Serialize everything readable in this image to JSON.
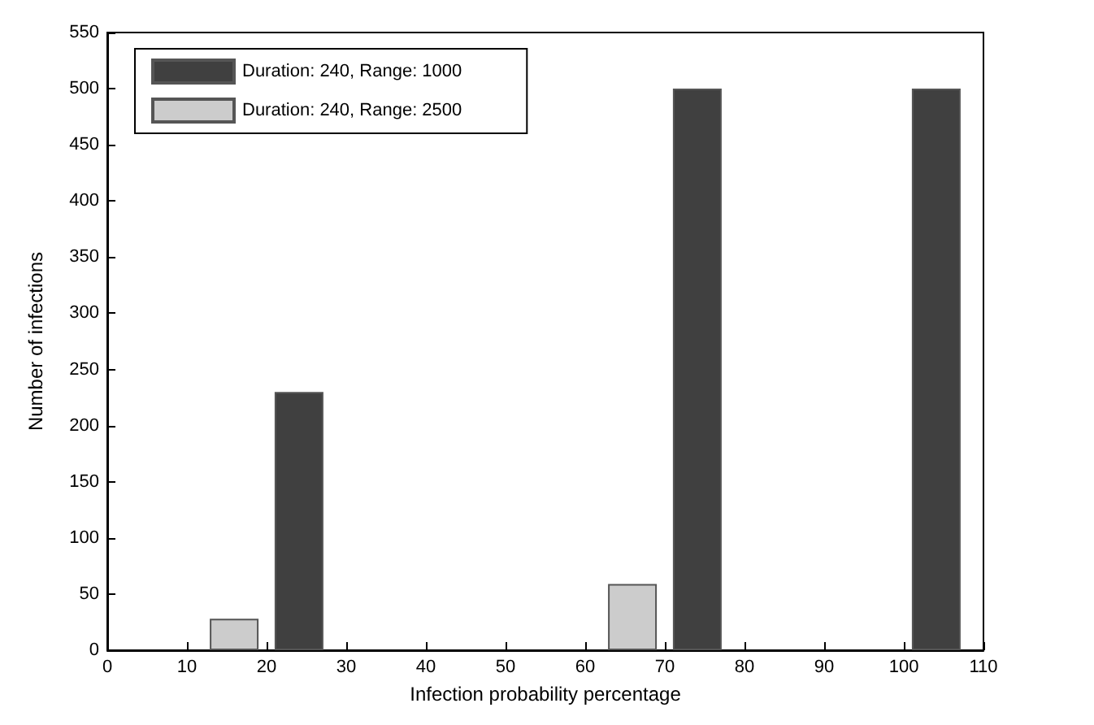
{
  "chart_data": {
    "type": "bar",
    "xlabel": "Infection probability percentage",
    "ylabel": "Number of infections",
    "x": [
      20,
      70,
      100
    ],
    "series": [
      {
        "name": "Duration: 240, Range: 1000",
        "color": "#404040",
        "values": [
          230,
          500,
          500
        ]
      },
      {
        "name": "Duration: 240, Range: 2500",
        "color": "#cccccc",
        "values": [
          28,
          59,
          null
        ]
      }
    ],
    "xlim": [
      0,
      110
    ],
    "xticks": [
      0,
      10,
      20,
      30,
      40,
      50,
      60,
      70,
      80,
      90,
      100,
      110
    ],
    "ylim": [
      0,
      550
    ],
    "yticks": [
      0,
      50,
      100,
      150,
      200,
      250,
      300,
      350,
      400,
      450,
      500,
      550
    ],
    "grid": false,
    "legend": "top left"
  }
}
